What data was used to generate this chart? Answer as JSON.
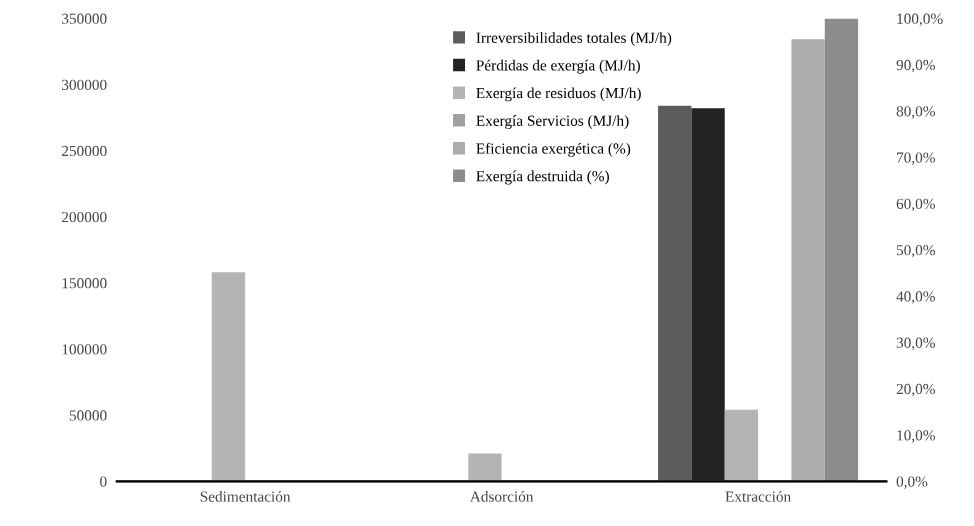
{
  "chart_data": {
    "type": "bar",
    "categories": [
      "Sedimentación",
      "Adsorción",
      "Extracción"
    ],
    "series": [
      {
        "name": "Irreversibilidades totales (MJ/h)",
        "color": "#5c5c5c",
        "values": [
          null,
          null,
          284000
        ]
      },
      {
        "name": "Pérdidas de exergía (MJ/h)",
        "color": "#232323",
        "values": [
          null,
          null,
          282000
        ]
      },
      {
        "name": "Exergía de residuos (MJ/h)",
        "color": "#b4b4b4",
        "values": [
          158000,
          21000,
          54000
        ]
      },
      {
        "name": "Exergía Servicios (MJ/h)",
        "color": "#a0a0a0",
        "values": [
          null,
          null,
          null
        ]
      },
      {
        "name": "Eficiencia exergética (%)",
        "color": "#acacac",
        "axis": "y2",
        "values": [
          null,
          null,
          0.955
        ]
      },
      {
        "name": "Exergía destruida (%)",
        "color": "#8c8c8c",
        "axis": "y2",
        "values": [
          null,
          null,
          1.0
        ]
      }
    ],
    "ylim": [
      0,
      350000
    ],
    "yticks": [
      0,
      50000,
      100000,
      150000,
      200000,
      250000,
      300000,
      350000
    ],
    "y2lim": [
      0,
      1.0
    ],
    "y2ticks": [
      {
        "value": 0,
        "label": "0,0%"
      },
      {
        "value": 0.1,
        "label": "10,0%"
      },
      {
        "value": 0.2,
        "label": "20,0%"
      },
      {
        "value": 0.3,
        "label": "30,0%"
      },
      {
        "value": 0.4,
        "label": "40,0%"
      },
      {
        "value": 0.5,
        "label": "50,0%"
      },
      {
        "value": 0.6,
        "label": "60,0%"
      },
      {
        "value": 0.7,
        "label": "70,0%"
      },
      {
        "value": 0.8,
        "label": "80,0%"
      },
      {
        "value": 0.9,
        "label": "90,0%"
      },
      {
        "value": 1.0,
        "label": "100,0%"
      }
    ],
    "grid": false,
    "legend": "top"
  }
}
